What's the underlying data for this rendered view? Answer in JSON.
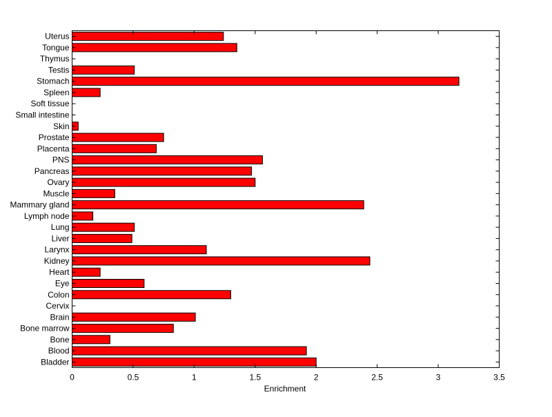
{
  "chart_data": {
    "type": "bar",
    "orientation": "horizontal",
    "title": "",
    "xlabel": "Enrichment",
    "ylabel": "",
    "xlim": [
      0,
      3.5
    ],
    "xticks": [
      "0",
      "0.5",
      "1",
      "1.5",
      "2",
      "2.5",
      "3",
      "3.5"
    ],
    "xtick_values": [
      0,
      0.5,
      1,
      1.5,
      2,
      2.5,
      3,
      3.5
    ],
    "grid": false,
    "bar_color": "#ff0000",
    "categories": [
      "Bladder",
      "Blood",
      "Bone",
      "Bone marrow",
      "Brain",
      "Cervix",
      "Colon",
      "Eye",
      "Heart",
      "Kidney",
      "Larynx",
      "Liver",
      "Lung",
      "Lymph node",
      "Mammary gland",
      "Muscle",
      "Ovary",
      "Pancreas",
      "PNS",
      "Placenta",
      "Prostate",
      "Skin",
      "Small intestine",
      "Soft tissue",
      "Spleen",
      "Stomach",
      "Testis",
      "Thymus",
      "Tongue",
      "Uterus"
    ],
    "values": [
      2.0,
      1.92,
      0.31,
      0.83,
      1.01,
      0,
      1.3,
      0.59,
      0.23,
      2.44,
      1.1,
      0.49,
      0.51,
      0.17,
      2.39,
      0.35,
      1.5,
      1.47,
      1.56,
      0.69,
      0.75,
      0.05,
      0,
      0,
      0.23,
      3.17,
      0.51,
      0,
      1.35,
      1.24
    ]
  }
}
